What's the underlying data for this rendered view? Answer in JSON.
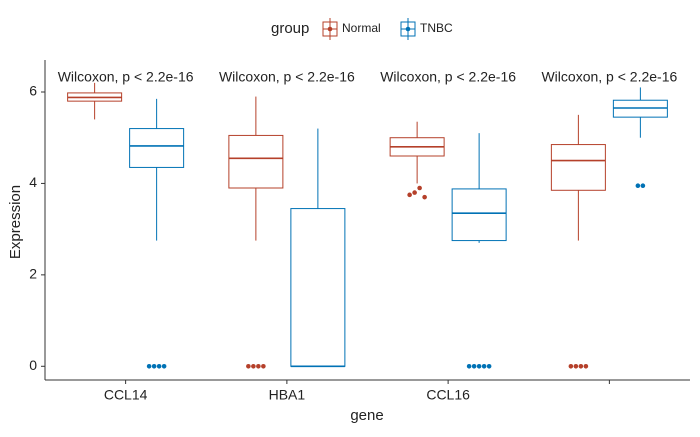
{
  "chart_data": {
    "type": "boxplot",
    "x_label": "gene",
    "y_label": "Expression",
    "legend_title": "group",
    "legend_position": "top",
    "categories": [
      "CCL14",
      "HBA1",
      "CCL16",
      null
    ],
    "annotations": [
      "Wilcoxon, p < 2.2e-16",
      "Wilcoxon, p < 2.2e-16",
      "Wilcoxon, p < 2.2e-16",
      "Wilcoxon, p < 2.2e-16"
    ],
    "ylim": [
      -0.3,
      6.7
    ],
    "yticks": [
      0,
      2,
      4,
      6
    ],
    "grid": false,
    "series": [
      {
        "name": "Normal",
        "color": "#b5402a",
        "stats": [
          {
            "min": 5.4,
            "q1": 5.8,
            "median": 5.88,
            "q3": 5.98,
            "max": 6.2,
            "outliers": []
          },
          {
            "min": 2.75,
            "q1": 3.9,
            "median": 4.55,
            "q3": 5.05,
            "max": 5.9,
            "outliers": [
              0,
              0,
              0,
              0
            ]
          },
          {
            "min": 4.0,
            "q1": 4.6,
            "median": 4.8,
            "q3": 5.0,
            "max": 5.35,
            "outliers": [
              3.75,
              3.8,
              3.9,
              3.7
            ]
          },
          {
            "min": 2.75,
            "q1": 3.85,
            "median": 4.5,
            "q3": 4.85,
            "max": 5.5,
            "outliers": [
              0,
              0,
              0,
              0
            ]
          }
        ]
      },
      {
        "name": "TNBC",
        "color": "#0072b5",
        "stats": [
          {
            "min": 2.75,
            "q1": 4.35,
            "median": 4.82,
            "q3": 5.2,
            "max": 5.85,
            "outliers": [
              0,
              0,
              0,
              0
            ]
          },
          {
            "min": 0,
            "q1": 0,
            "median": 0,
            "q3": 3.45,
            "max": 5.2,
            "outliers": []
          },
          {
            "min": 2.7,
            "q1": 2.75,
            "median": 3.35,
            "q3": 3.88,
            "max": 5.1,
            "outliers": [
              0,
              0,
              0,
              0,
              0
            ]
          },
          {
            "min": 5.0,
            "q1": 5.45,
            "median": 5.65,
            "q3": 5.82,
            "max": 6.1,
            "outliers": [
              3.95,
              3.95
            ]
          }
        ]
      }
    ]
  }
}
